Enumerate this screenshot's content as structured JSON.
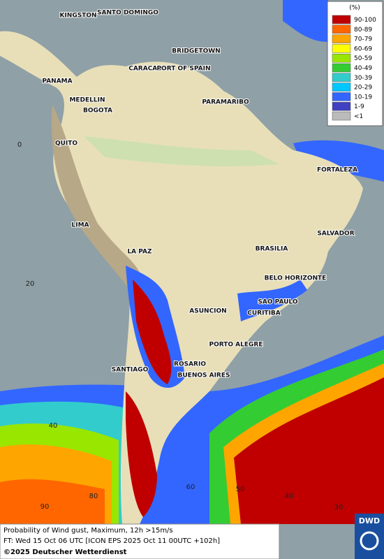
{
  "map": {
    "cities": [
      "KINGSTON",
      "SANTO DOMINGO",
      "BRIDGETOWN",
      "CARACAS",
      "PORT OF SPAIN",
      "PANAMA",
      "MEDELLIN",
      "BOGOTA",
      "PARAMARIBO",
      "QUITO",
      "FORTALEZA",
      "LIMA",
      "SALVADOR",
      "LA PAZ",
      "BRASILIA",
      "BELO HORIZONTE",
      "ASUNCION",
      "SAO PAULO",
      "CURITIBA",
      "PORTO ALEGRE",
      "SANTIAGO",
      "ROSARIO",
      "BUENOS AIRES"
    ],
    "grid_labels": [
      "0",
      "20",
      "40",
      "90",
      "80",
      "60",
      "50",
      "40",
      "30"
    ]
  },
  "legend": {
    "unit": "(%)",
    "items": [
      {
        "label": "90-100",
        "color": "#c00000"
      },
      {
        "label": "80-89",
        "color": "#ff6600"
      },
      {
        "label": "70-79",
        "color": "#ffa500"
      },
      {
        "label": "60-69",
        "color": "#ffff00"
      },
      {
        "label": "50-59",
        "color": "#99e600"
      },
      {
        "label": "40-49",
        "color": "#33cc33"
      },
      {
        "label": "30-39",
        "color": "#33cccc"
      },
      {
        "label": "20-29",
        "color": "#00c8ff"
      },
      {
        "label": "10-19",
        "color": "#3366ff"
      },
      {
        "label": "1-9",
        "color": "#4040c0"
      },
      {
        "label": "<1",
        "color": "#bbbbbb"
      }
    ]
  },
  "footer": {
    "line1": "Probability of Wind gust, Maximum, 12h >15m/s",
    "line2": "FT: Wed 15 Oct 06 UTC [ICON EPS 2025 Oct 11 00UTC +102h]",
    "copyright": "©2025 Deutscher Wetterdienst"
  },
  "logo": "DWD"
}
